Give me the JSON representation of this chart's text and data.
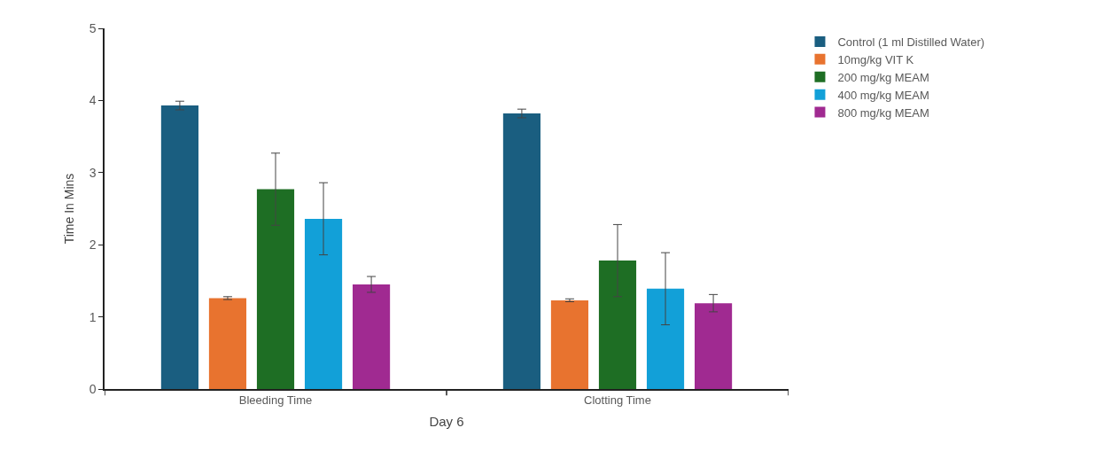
{
  "chart_data": {
    "type": "bar",
    "xlabel": "Day 6",
    "ylabel": "Time In Mins",
    "categories": [
      "Bleeding Time",
      "Clotting Time"
    ],
    "series": [
      {
        "name": "Control (1 ml Distilled Water)",
        "color": "#1a5e80",
        "values": [
          3.93,
          3.82
        ],
        "errors": [
          0.06,
          0.06
        ]
      },
      {
        "name": "10mg/kg VIT K",
        "color": "#e8732f",
        "values": [
          1.26,
          1.23
        ],
        "errors": [
          0.02,
          0.02
        ]
      },
      {
        "name": "200 mg/kg MEAM",
        "color": "#1e6e24",
        "values": [
          2.77,
          1.78
        ],
        "errors": [
          0.5,
          0.5
        ]
      },
      {
        "name": "400 mg/kg MEAM",
        "color": "#12a0d8",
        "values": [
          2.36,
          1.39
        ],
        "errors": [
          0.5,
          0.5
        ]
      },
      {
        "name": "800 mg/kg MEAM",
        "color": "#a02a91",
        "values": [
          1.45,
          1.19
        ],
        "errors": [
          0.11,
          0.12
        ]
      }
    ],
    "ylim": [
      0,
      5
    ],
    "yticks": [
      0,
      1,
      2,
      3,
      4,
      5
    ],
    "grid": false,
    "legend": "top right"
  }
}
